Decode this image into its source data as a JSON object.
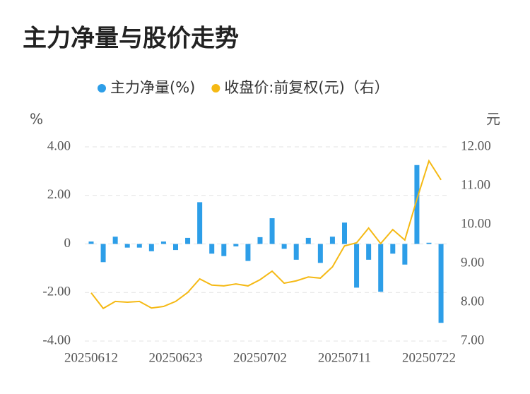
{
  "chart_data": {
    "type": "bar-line",
    "title": "主力净量与股价走势",
    "y_label": "%",
    "y2_label": "元",
    "categories": [
      "20250612",
      null,
      null,
      null,
      null,
      null,
      null,
      "20250623",
      null,
      null,
      null,
      null,
      null,
      null,
      "20250702",
      null,
      null,
      null,
      null,
      null,
      null,
      "20250711",
      null,
      null,
      null,
      null,
      null,
      null,
      "20250722",
      null
    ],
    "series": [
      {
        "name": "主力净量(%)",
        "type": "bar",
        "color": "#2d9ee8",
        "values": [
          0.1,
          -0.75,
          0.3,
          -0.15,
          -0.15,
          -0.3,
          0.1,
          -0.25,
          0.25,
          1.72,
          -0.4,
          -0.5,
          -0.1,
          -0.7,
          0.28,
          1.06,
          -0.2,
          -0.65,
          0.25,
          -0.78,
          0.3,
          0.88,
          -1.8,
          -0.65,
          -1.97,
          -0.4,
          -0.85,
          3.25,
          0.05,
          -3.25
        ]
      },
      {
        "name": "收盘价:前复权(元)（右）",
        "type": "line",
        "axis": "y2",
        "color": "#f5b914",
        "values": [
          8.24,
          7.84,
          8.02,
          8.0,
          8.02,
          7.85,
          7.89,
          8.02,
          8.25,
          8.6,
          8.44,
          8.42,
          8.47,
          8.42,
          8.58,
          8.8,
          8.49,
          8.55,
          8.65,
          8.62,
          8.91,
          9.45,
          9.53,
          9.91,
          9.51,
          9.87,
          9.6,
          10.65,
          11.64,
          11.15
        ]
      }
    ],
    "ylim": [
      -4,
      4
    ],
    "yticks": [
      {
        "value": 4,
        "label": "4.00"
      },
      {
        "value": 2,
        "label": "2.00"
      },
      0,
      {
        "value": -2,
        "label": "-2.00"
      },
      {
        "value": -4,
        "label": "-4.00"
      }
    ],
    "y2lim": [
      7,
      12
    ],
    "y2ticks": [
      {
        "value": 12,
        "label": "12.00"
      },
      {
        "value": 11,
        "label": "11.00"
      },
      {
        "value": 10,
        "label": "10.00"
      },
      {
        "value": 9,
        "label": "9.00"
      },
      {
        "value": 8,
        "label": "8.00"
      },
      {
        "value": 7,
        "label": "7.00"
      }
    ],
    "grid": true
  }
}
